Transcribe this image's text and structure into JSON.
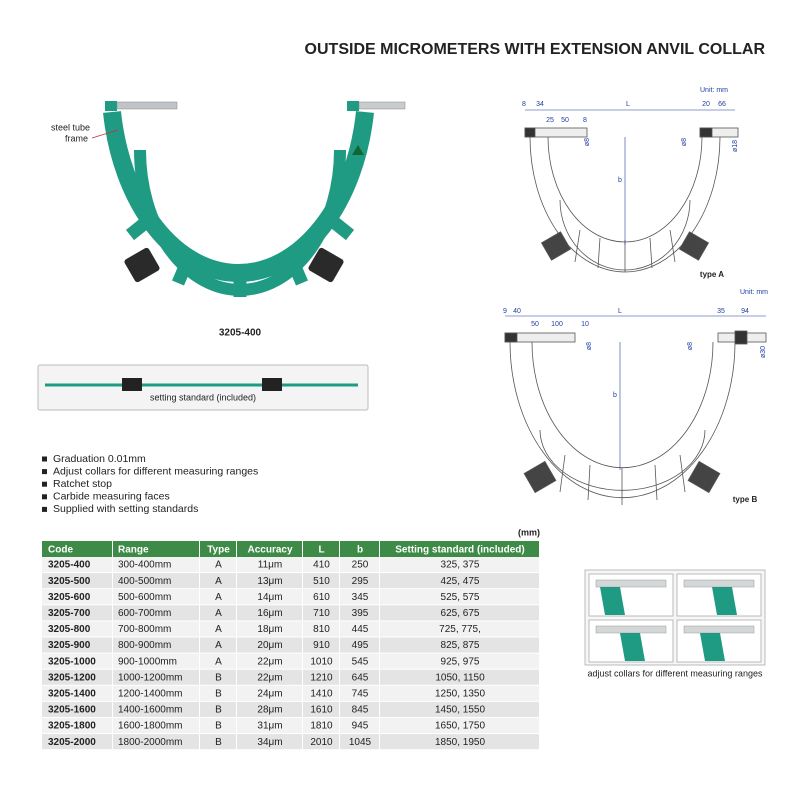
{
  "title": "OUTSIDE MICROMETERS WITH EXTENSION ANVIL COLLAR",
  "photo": {
    "callout": [
      "steel tube",
      "frame"
    ],
    "model": "3205-400",
    "setting_standard": "setting standard (included)"
  },
  "features": [
    "Graduation 0.01mm",
    "Adjust collars for different measuring ranges",
    "Ratchet stop",
    "Carbide measuring faces",
    "Supplied with setting standards"
  ],
  "diagram_a": {
    "unit": "Unit: mm",
    "type": "type A",
    "labels": [
      "8",
      "34",
      "L",
      "20",
      "66",
      "25",
      "50",
      "8",
      "ø8",
      "b",
      "ø8",
      "ø18"
    ]
  },
  "diagram_b": {
    "unit": "Unit: mm",
    "type": "type B",
    "labels": [
      "9",
      "40",
      "L",
      "35",
      "94",
      "50",
      "100",
      "10",
      "ø8",
      "b",
      "ø8",
      "ø30"
    ]
  },
  "table": {
    "unit": "(mm)",
    "header": [
      "Code",
      "Range",
      "Type",
      "Accuracy",
      "L",
      "b",
      "Setting standard (included)"
    ],
    "rows": [
      [
        "3205-400",
        "300-400mm",
        "A",
        "11μm",
        "410",
        "250",
        "325, 375"
      ],
      [
        "3205-500",
        "400-500mm",
        "A",
        "13μm",
        "510",
        "295",
        "425, 475"
      ],
      [
        "3205-600",
        "500-600mm",
        "A",
        "14μm",
        "610",
        "345",
        "525, 575"
      ],
      [
        "3205-700",
        "600-700mm",
        "A",
        "16μm",
        "710",
        "395",
        "625, 675"
      ],
      [
        "3205-800",
        "700-800mm",
        "A",
        "18μm",
        "810",
        "445",
        "725, 775,"
      ],
      [
        "3205-900",
        "800-900mm",
        "A",
        "20μm",
        "910",
        "495",
        "825, 875"
      ],
      [
        "3205-1000",
        "900-1000mm",
        "A",
        "22μm",
        "1010",
        "545",
        "925, 975"
      ],
      [
        "3205-1200",
        "1000-1200mm",
        "B",
        "22μm",
        "1210",
        "645",
        "1050, 1150"
      ],
      [
        "3205-1400",
        "1200-1400mm",
        "B",
        "24μm",
        "1410",
        "745",
        "1250, 1350"
      ],
      [
        "3205-1600",
        "1400-1600mm",
        "B",
        "28μm",
        "1610",
        "845",
        "1450, 1550"
      ],
      [
        "3205-1800",
        "1600-1800mm",
        "B",
        "31μm",
        "1810",
        "945",
        "1650, 1750"
      ],
      [
        "3205-2000",
        "1800-2000mm",
        "B",
        "34μm",
        "2010",
        "1045",
        "1850, 1950"
      ]
    ]
  },
  "collars": {
    "caption": "adjust collars for different measuring ranges"
  }
}
